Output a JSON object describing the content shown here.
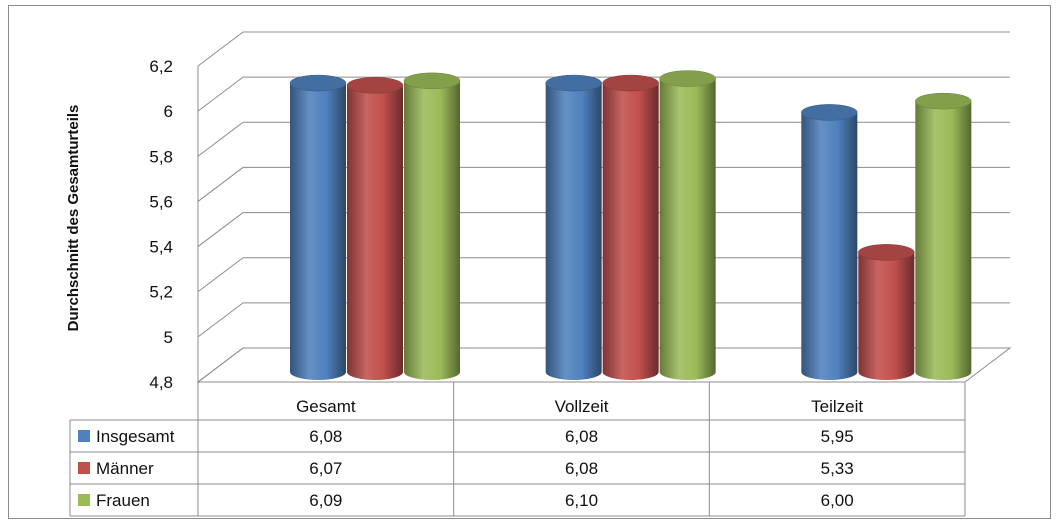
{
  "chart_data": {
    "type": "bar",
    "title": "",
    "xlabel": "",
    "ylabel": "Durchschnitt des Gesamturteils",
    "ylim": [
      4.8,
      6.2
    ],
    "yticks": [
      "4,8",
      "5",
      "5,2",
      "5,4",
      "5,6",
      "5,8",
      "6",
      "6,2"
    ],
    "categories": [
      "Gesamt",
      "Vollzeit",
      "Teilzeit"
    ],
    "series": [
      {
        "name": "Insgesamt",
        "color": "#4f81bd",
        "values": [
          6.08,
          6.08,
          5.95
        ],
        "labels": [
          "6,08",
          "6,08",
          "5,95"
        ]
      },
      {
        "name": "Männer",
        "color": "#c0504d",
        "values": [
          6.07,
          6.08,
          5.33
        ],
        "labels": [
          "6,07",
          "6,08",
          "5,33"
        ]
      },
      {
        "name": "Frauen",
        "color": "#9bbb59",
        "values": [
          6.09,
          6.1,
          6.0
        ],
        "labels": [
          "6,09",
          "6,10",
          "6,00"
        ]
      }
    ],
    "grid": true,
    "legend": "data-table",
    "style": "3d-cylinder"
  }
}
